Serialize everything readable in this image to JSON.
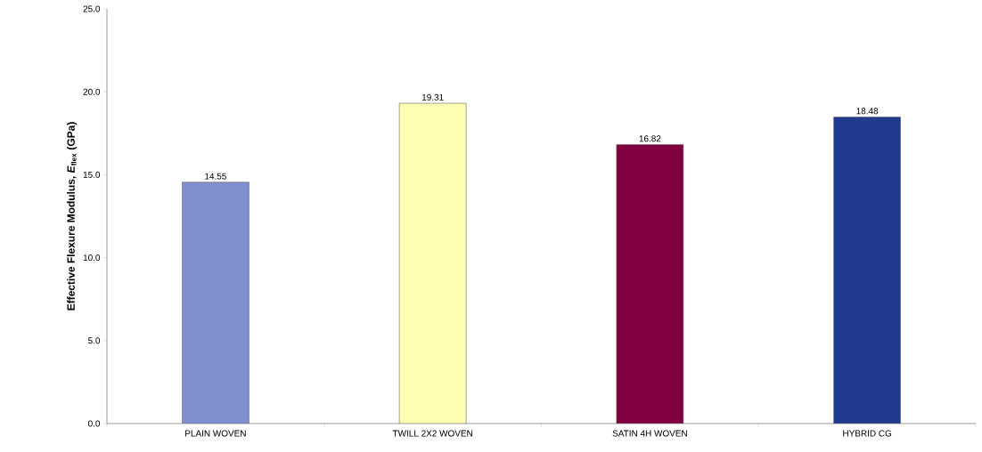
{
  "chart_data": {
    "type": "bar",
    "ylabel": "Effective Flexure Modulus, *E*$_{flex}$  (GPa)",
    "categories": [
      "PLAIN WOVEN",
      "TWILL 2X2 WOVEN",
      "SATIN 4H WOVEN",
      "HYBRID CG"
    ],
    "values": [
      14.55,
      19.31,
      16.82,
      18.48
    ],
    "colors": [
      "#7f8fd0",
      "#ffffb3",
      "#800040",
      "#1f3a8f"
    ],
    "ylim": [
      0,
      25
    ],
    "yticks": [
      {
        "value": 0,
        "label": "0.0"
      },
      {
        "value": 5,
        "label": "5.0"
      },
      {
        "value": 10,
        "label": "10.0"
      },
      {
        "value": 15,
        "label": "15.0"
      },
      {
        "value": 20,
        "label": "20.0"
      },
      {
        "value": 25,
        "label": "25.0"
      }
    ],
    "data_labels": true
  }
}
